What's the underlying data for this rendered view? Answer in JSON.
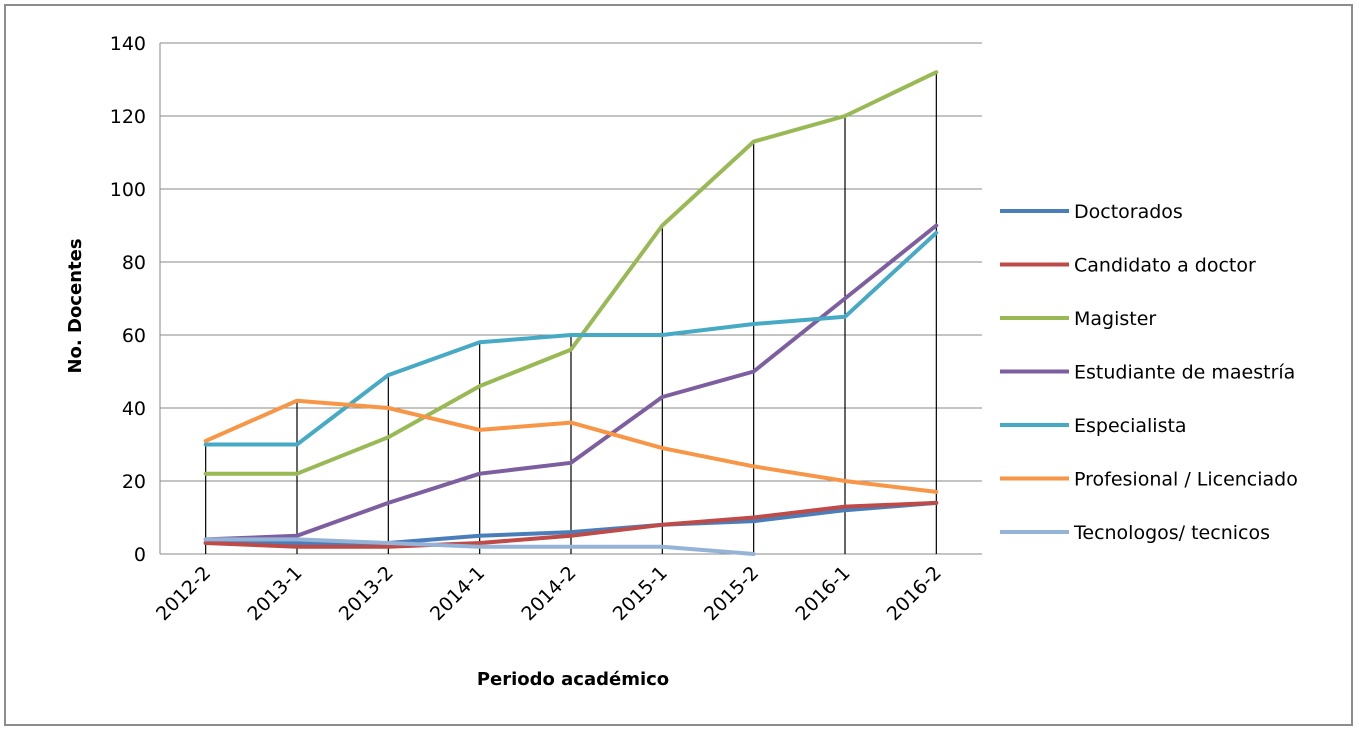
{
  "chart_data": {
    "type": "line",
    "title": "",
    "xlabel": "Periodo académico",
    "ylabel": "No. Docentes",
    "categories": [
      "2012-2",
      "2013-1",
      "2013-2",
      "2014-1",
      "2014-2",
      "2015-1",
      "2015-2",
      "2016-1",
      "2016-2"
    ],
    "ylim": [
      0,
      140
    ],
    "yticks": [
      0,
      20,
      40,
      60,
      80,
      100,
      120,
      140
    ],
    "grid": true,
    "drop_lines": true,
    "legend_position": "right",
    "series": [
      {
        "name": "Doctorados",
        "color": "#4a7ebb",
        "values": [
          3,
          3,
          3,
          5,
          6,
          8,
          9,
          12,
          14
        ]
      },
      {
        "name": "Candidato a doctor",
        "color": "#be4b48",
        "values": [
          3,
          2,
          2,
          3,
          5,
          8,
          10,
          13,
          14
        ]
      },
      {
        "name": "Magister",
        "color": "#98b954",
        "values": [
          22,
          22,
          32,
          46,
          56,
          90,
          113,
          120,
          132
        ]
      },
      {
        "name": "Estudiante de maestría",
        "color": "#7d5fa0",
        "values": [
          4,
          5,
          14,
          22,
          25,
          43,
          50,
          70,
          90
        ]
      },
      {
        "name": "Especialista",
        "color": "#46aac5",
        "values": [
          30,
          30,
          49,
          58,
          60,
          60,
          63,
          65,
          88
        ]
      },
      {
        "name": "Profesional / Licenciado",
        "color": "#f79646",
        "values": [
          31,
          42,
          40,
          34,
          36,
          29,
          24,
          20,
          17
        ]
      },
      {
        "name": "Tecnologos/ tecnicos",
        "color": "#95b3d7",
        "values": [
          4,
          4,
          3,
          2,
          2,
          2,
          0,
          null,
          null
        ]
      }
    ]
  }
}
